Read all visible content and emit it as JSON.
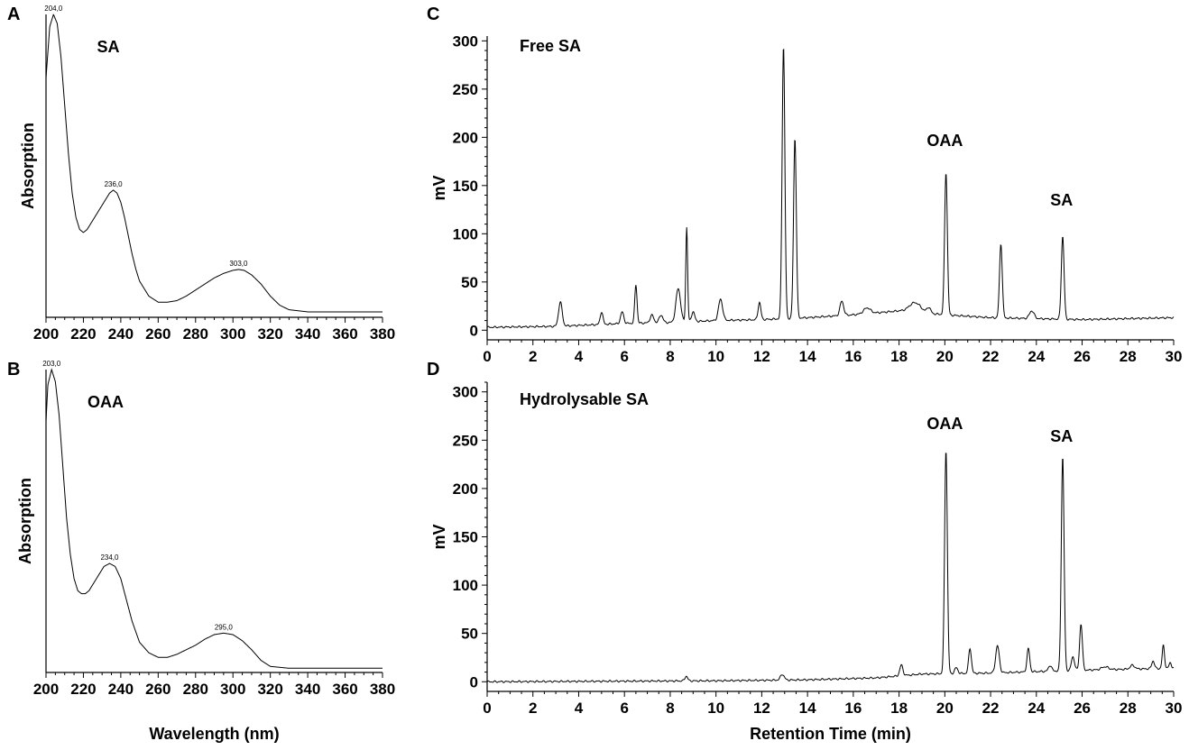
{
  "panels": {
    "A": "A",
    "B": "B",
    "C": "C",
    "D": "D"
  },
  "chart_data": [
    {
      "panel": "A",
      "type": "line",
      "annotation": "SA",
      "xlabel": "",
      "ylabel": "Absorption",
      "xlim": [
        200,
        380
      ],
      "ylim": [
        0,
        1
      ],
      "xticks": [
        200,
        220,
        240,
        260,
        280,
        300,
        320,
        340,
        360,
        380
      ],
      "yticks": [],
      "peak_labels": [
        {
          "x": 204,
          "label": "204,0"
        },
        {
          "x": 236,
          "label": "236,0"
        },
        {
          "x": 303,
          "label": "303,0"
        }
      ],
      "series": [
        {
          "x": [
            200,
            202,
            204,
            206,
            208,
            210,
            212,
            214,
            216,
            218,
            220,
            222,
            224,
            226,
            228,
            230,
            232,
            234,
            236,
            238,
            240,
            242,
            244,
            246,
            248,
            250,
            255,
            260,
            265,
            270,
            275,
            280,
            285,
            290,
            295,
            300,
            303,
            306,
            310,
            315,
            320,
            325,
            330,
            340,
            350,
            360,
            370,
            380
          ],
          "y": [
            0.79,
            0.96,
            1.0,
            0.97,
            0.86,
            0.7,
            0.54,
            0.41,
            0.33,
            0.29,
            0.28,
            0.29,
            0.31,
            0.33,
            0.35,
            0.37,
            0.39,
            0.41,
            0.42,
            0.41,
            0.38,
            0.33,
            0.27,
            0.21,
            0.16,
            0.12,
            0.07,
            0.05,
            0.05,
            0.055,
            0.07,
            0.09,
            0.11,
            0.13,
            0.145,
            0.155,
            0.158,
            0.155,
            0.14,
            0.11,
            0.07,
            0.04,
            0.025,
            0.018,
            0.018,
            0.018,
            0.018,
            0.018
          ]
        }
      ]
    },
    {
      "panel": "B",
      "type": "line",
      "annotation": "OAA",
      "xlabel": "Wavelength (nm)",
      "ylabel": "Absorption",
      "xlim": [
        200,
        380
      ],
      "ylim": [
        0,
        1
      ],
      "xticks": [
        200,
        220,
        240,
        260,
        280,
        300,
        320,
        340,
        360,
        380
      ],
      "yticks": [],
      "peak_labels": [
        {
          "x": 203,
          "label": "203,0"
        },
        {
          "x": 234,
          "label": "234,0"
        },
        {
          "x": 295,
          "label": "295,0"
        }
      ],
      "series": [
        {
          "x": [
            200,
            201,
            203,
            205,
            207,
            209,
            211,
            213,
            215,
            217,
            219,
            221,
            223,
            225,
            227,
            229,
            231,
            234,
            237,
            240,
            243,
            246,
            250,
            255,
            260,
            265,
            270,
            275,
            280,
            285,
            290,
            295,
            300,
            305,
            310,
            315,
            320,
            330,
            340,
            350,
            360,
            370,
            380
          ],
          "y": [
            0.83,
            0.95,
            1.0,
            0.96,
            0.85,
            0.68,
            0.51,
            0.39,
            0.31,
            0.27,
            0.26,
            0.26,
            0.27,
            0.29,
            0.31,
            0.33,
            0.35,
            0.36,
            0.35,
            0.31,
            0.24,
            0.17,
            0.1,
            0.065,
            0.05,
            0.05,
            0.06,
            0.075,
            0.09,
            0.11,
            0.125,
            0.13,
            0.125,
            0.105,
            0.075,
            0.04,
            0.02,
            0.014,
            0.014,
            0.014,
            0.014,
            0.014,
            0.014
          ]
        }
      ]
    },
    {
      "panel": "C",
      "type": "line",
      "annotation": "Free SA",
      "peak_annotations": [
        {
          "text": "OAA",
          "x": 20.0
        },
        {
          "text": "SA",
          "x": 25.1
        }
      ],
      "xlabel": "",
      "ylabel": "mV",
      "xlim": [
        0,
        30
      ],
      "ylim": [
        -10,
        305
      ],
      "xticks": [
        0,
        2,
        4,
        6,
        8,
        10,
        12,
        14,
        16,
        18,
        20,
        22,
        24,
        26,
        28,
        30
      ],
      "yticks": [
        0,
        50,
        100,
        150,
        200,
        250,
        300
      ],
      "series": [
        {
          "baseline": [
            [
              0,
              3
            ],
            [
              3,
              4
            ],
            [
              6,
              7
            ],
            [
              8,
              8
            ],
            [
              10,
              10
            ],
            [
              12,
              11
            ],
            [
              14,
              13
            ],
            [
              16,
              16
            ],
            [
              18,
              20
            ],
            [
              20,
              16
            ],
            [
              22,
              13
            ],
            [
              24,
              12
            ],
            [
              26,
              11
            ],
            [
              28,
              12
            ],
            [
              30,
              13
            ]
          ],
          "peaks": [
            [
              3.2,
              25,
              0.08
            ],
            [
              5.0,
              13,
              0.06
            ],
            [
              5.9,
              12,
              0.07
            ],
            [
              6.5,
              40,
              0.05
            ],
            [
              7.2,
              8,
              0.08
            ],
            [
              7.6,
              8,
              0.08
            ],
            [
              8.35,
              35,
              0.1
            ],
            [
              8.72,
              98,
              0.04
            ],
            [
              9.0,
              10,
              0.07
            ],
            [
              10.2,
              22,
              0.09
            ],
            [
              11.9,
              18,
              0.06
            ],
            [
              12.95,
              283,
              0.06
            ],
            [
              13.45,
              187,
              0.06
            ],
            [
              15.5,
              15,
              0.08
            ],
            [
              16.6,
              6,
              0.15
            ],
            [
              18.7,
              10,
              0.25
            ],
            [
              19.3,
              6,
              0.08
            ],
            [
              20.05,
              148,
              0.06
            ],
            [
              22.45,
              77,
              0.06
            ],
            [
              23.8,
              8,
              0.1
            ],
            [
              25.15,
              86,
              0.06
            ]
          ]
        }
      ]
    },
    {
      "panel": "D",
      "type": "line",
      "annotation": "Hydrolysable SA",
      "peak_annotations": [
        {
          "text": "OAA",
          "x": 20.0
        },
        {
          "text": "SA",
          "x": 25.1
        }
      ],
      "xlabel": "Retention Time (min)",
      "ylabel": "mV",
      "xlim": [
        0,
        30
      ],
      "ylim": [
        -10,
        310
      ],
      "xticks": [
        0,
        2,
        4,
        6,
        8,
        10,
        12,
        14,
        16,
        18,
        20,
        22,
        24,
        26,
        28,
        30
      ],
      "yticks": [
        0,
        50,
        100,
        150,
        200,
        250,
        300
      ],
      "series": [
        {
          "baseline": [
            [
              0,
              0
            ],
            [
              10,
              1
            ],
            [
              14,
              2
            ],
            [
              17,
              4
            ],
            [
              19,
              8
            ],
            [
              22,
              9
            ],
            [
              26,
              12
            ],
            [
              30,
              14
            ]
          ],
          "peaks": [
            [
              8.7,
              5,
              0.06
            ],
            [
              12.9,
              6,
              0.08
            ],
            [
              18.1,
              11,
              0.07
            ],
            [
              20.05,
              232,
              0.06
            ],
            [
              20.5,
              6,
              0.07
            ],
            [
              21.1,
              26,
              0.06
            ],
            [
              22.3,
              28,
              0.08
            ],
            [
              23.65,
              24,
              0.06
            ],
            [
              24.6,
              6,
              0.07
            ],
            [
              25.15,
              222,
              0.06
            ],
            [
              25.6,
              14,
              0.07
            ],
            [
              25.95,
              48,
              0.06
            ],
            [
              27.0,
              3,
              0.15
            ],
            [
              28.2,
              4,
              0.1
            ],
            [
              29.1,
              8,
              0.06
            ],
            [
              29.55,
              24,
              0.05
            ],
            [
              29.85,
              6,
              0.05
            ]
          ]
        }
      ]
    }
  ]
}
